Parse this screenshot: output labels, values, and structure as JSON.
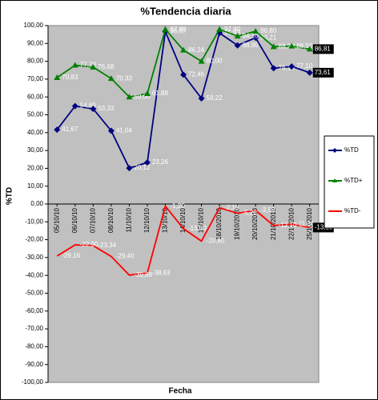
{
  "chart_data": {
    "type": "line",
    "title": "%Tendencia diaria",
    "y_label": "%TD",
    "x_label": "Fecha",
    "categories": [
      "05/10/10",
      "06/10/10",
      "07/10/10",
      "08/10/10",
      "11/10/10",
      "12/10/10",
      "13/10/10",
      "14/10/10",
      "15/10/10",
      "18/10/2010",
      "19/10/2010",
      "20/10/2010",
      "21/10/2010",
      "22/10/2010",
      "25/10/2010"
    ],
    "series": [
      {
        "name": "%TD",
        "color": "#000080",
        "marker": "diamond",
        "values": [
          41.67,
          54.89,
          53.33,
          41.04,
          20.12,
          23.26,
          96.67,
          72.46,
          59.22,
          95.83,
          88.9,
          93.21,
          76.1,
          77.1,
          73.61
        ],
        "value_labels": [
          "41,67",
          "54,89",
          "53,33",
          "41,04",
          "20,12",
          "23,26",
          "96,67",
          "72,46",
          "59,22",
          "95,83",
          "88,90",
          "93,21",
          "76,10",
          "77,10",
          "73,61"
        ]
      },
      {
        "name": "%TD+",
        "color": "#008000",
        "marker": "triangle",
        "values": [
          70.83,
          77.78,
          76.68,
          70.33,
          60.0,
          61.88,
          97.9,
          86.24,
          80.0,
          97.9,
          94.1,
          96.8,
          88.2,
          88.5,
          86.81
        ],
        "value_labels": [
          "70,83",
          "77,78",
          "76,68",
          "70,33",
          "60,00",
          "61,88",
          "97,90",
          "86,24",
          "80,00",
          "97,90",
          "94,10",
          "96,80",
          "88,20",
          "88,50",
          "86,81"
        ]
      },
      {
        "name": "%TD-",
        "color": "#ff0000",
        "marker": "none",
        "values": [
          -29.16,
          -22.9,
          -23.34,
          -29.4,
          -39.88,
          -38.63,
          -1.2,
          -13.8,
          -20.8,
          -2.1,
          -5.2,
          -3.59,
          -12.1,
          -11.3,
          -13.19
        ],
        "value_labels": [
          "-29,16",
          "-22,90",
          "-23,34",
          "-29,40",
          "-39,88",
          "-38,63",
          "-1,20",
          "-13,80",
          "-20,80",
          "-2,10",
          "-5,20",
          "-3,59",
          "-12,10",
          "-11,30",
          "-13,19"
        ]
      }
    ],
    "ylim": [
      -100,
      100
    ],
    "yticks": [
      {
        "value": 100,
        "label": "100,00"
      },
      {
        "value": 90,
        "label": "90,00"
      },
      {
        "value": 80,
        "label": "80,00"
      },
      {
        "value": 70,
        "label": "70,00"
      },
      {
        "value": 60,
        "label": "60,00"
      },
      {
        "value": 50,
        "label": "50,00"
      },
      {
        "value": 40,
        "label": "40,00"
      },
      {
        "value": 30,
        "label": "30,00"
      },
      {
        "value": 20,
        "label": "20,00"
      },
      {
        "value": 10,
        "label": "10,00"
      },
      {
        "value": 0,
        "label": "0,00"
      },
      {
        "value": -10,
        "label": "-10,00"
      },
      {
        "value": -20,
        "label": "-20,00"
      },
      {
        "value": -30,
        "label": "-30,00"
      },
      {
        "value": -40,
        "label": "-40,00"
      },
      {
        "value": -50,
        "label": "-50,00"
      },
      {
        "value": -60,
        "label": "-60,00"
      },
      {
        "value": -70,
        "label": "-70,00"
      },
      {
        "value": -80,
        "label": "-80,00"
      },
      {
        "value": -90,
        "label": "-90,00"
      },
      {
        "value": -100,
        "label": "-100,00"
      }
    ],
    "legend": "right",
    "plot_background": "#c0c0c0"
  }
}
